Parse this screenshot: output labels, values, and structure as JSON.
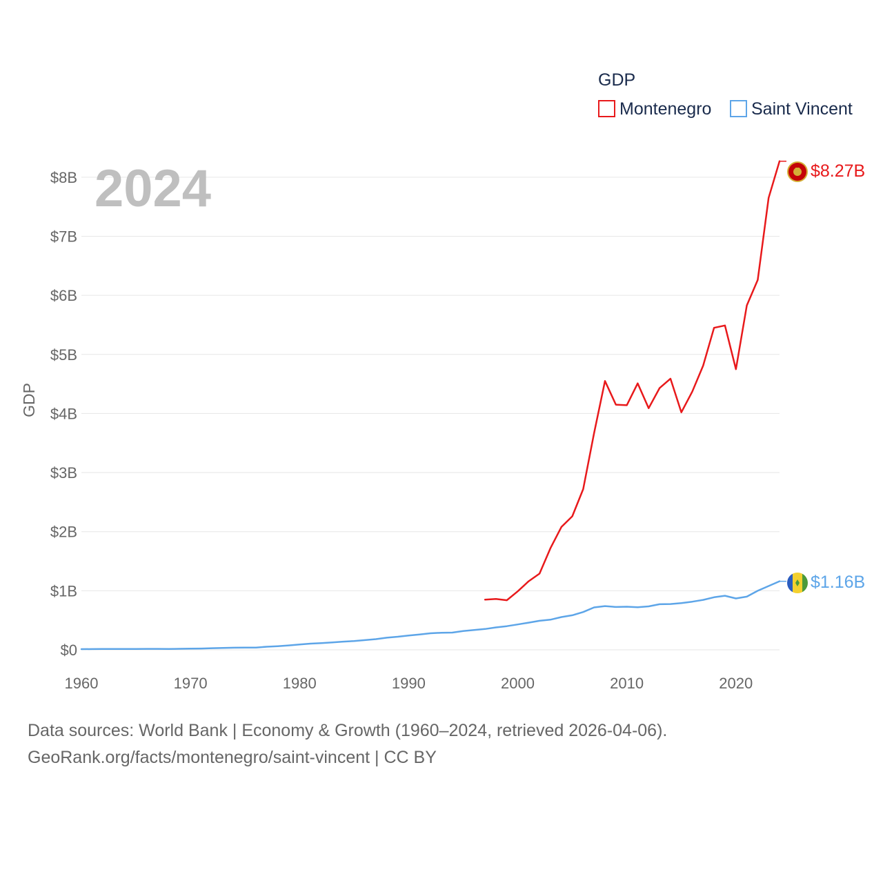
{
  "chart_data": {
    "type": "line",
    "title": "GDP",
    "ylabel": "GDP",
    "xlabel": "",
    "year_label": "2024",
    "xlim": [
      1960,
      2024
    ],
    "ylim": [
      0,
      8500000000
    ],
    "x_ticks": [
      1960,
      1970,
      1980,
      1990,
      2000,
      2010,
      2020
    ],
    "y_ticks": [
      {
        "value": 0,
        "label": "$0"
      },
      {
        "value": 1000000000,
        "label": "$1B"
      },
      {
        "value": 2000000000,
        "label": "$2B"
      },
      {
        "value": 3000000000,
        "label": "$3B"
      },
      {
        "value": 4000000000,
        "label": "$4B"
      },
      {
        "value": 5000000000,
        "label": "$5B"
      },
      {
        "value": 6000000000,
        "label": "$6B"
      },
      {
        "value": 7000000000,
        "label": "$7B"
      },
      {
        "value": 8000000000,
        "label": "$8B"
      }
    ],
    "grid": true,
    "legend_position": "top-right",
    "series": [
      {
        "name": "Montenegro",
        "color": "#e8191b",
        "end_label": "$8.27B",
        "flag_icon": "montenegro-flag-icon",
        "x": [
          1997,
          1998,
          1999,
          2000,
          2001,
          2002,
          2003,
          2004,
          2005,
          2006,
          2007,
          2008,
          2009,
          2010,
          2011,
          2012,
          2013,
          2014,
          2015,
          2016,
          2017,
          2018,
          2019,
          2020,
          2021,
          2022,
          2023,
          2024
        ],
        "values": [
          850000000,
          860000000,
          840000000,
          990000000,
          1160000000,
          1290000000,
          1720000000,
          2080000000,
          2260000000,
          2720000000,
          3670000000,
          4550000000,
          4150000000,
          4140000000,
          4510000000,
          4090000000,
          4430000000,
          4590000000,
          4020000000,
          4370000000,
          4810000000,
          5450000000,
          5490000000,
          4750000000,
          5830000000,
          6260000000,
          7650000000,
          8270000000
        ]
      },
      {
        "name": "Saint Vincent",
        "color": "#5da5e8",
        "end_label": "$1.16B",
        "flag_icon": "saint-vincent-flag-icon",
        "x": [
          1960,
          1961,
          1962,
          1963,
          1964,
          1965,
          1966,
          1967,
          1968,
          1969,
          1970,
          1971,
          1972,
          1973,
          1974,
          1975,
          1976,
          1977,
          1978,
          1979,
          1980,
          1981,
          1982,
          1983,
          1984,
          1985,
          1986,
          1987,
          1988,
          1989,
          1990,
          1991,
          1992,
          1993,
          1994,
          1995,
          1996,
          1997,
          1998,
          1999,
          2000,
          2001,
          2002,
          2003,
          2004,
          2005,
          2006,
          2007,
          2008,
          2009,
          2010,
          2011,
          2012,
          2013,
          2014,
          2015,
          2016,
          2017,
          2018,
          2019,
          2020,
          2021,
          2022,
          2023,
          2024
        ],
        "values": [
          12000000,
          13000000,
          14000000,
          14000000,
          15000000,
          15000000,
          16000000,
          16000000,
          15000000,
          17000000,
          20000000,
          22000000,
          28000000,
          33000000,
          36000000,
          38000000,
          38000000,
          52000000,
          62000000,
          75000000,
          90000000,
          105000000,
          115000000,
          126000000,
          139000000,
          150000000,
          165000000,
          181000000,
          205000000,
          222000000,
          243000000,
          260000000,
          280000000,
          290000000,
          292000000,
          318000000,
          335000000,
          353000000,
          380000000,
          400000000,
          430000000,
          460000000,
          492000000,
          510000000,
          555000000,
          585000000,
          640000000,
          718000000,
          740000000,
          725000000,
          730000000,
          720000000,
          735000000,
          772000000,
          775000000,
          790000000,
          815000000,
          845000000,
          890000000,
          915000000,
          870000000,
          900000000,
          1000000000,
          1080000000,
          1160000000
        ]
      }
    ]
  },
  "footer": {
    "line1": "Data sources: World Bank | Economy & Growth (1960–2024, retrieved 2026-04-06).",
    "line2": "GeoRank.org/facts/montenegro/saint-vincent | CC BY"
  }
}
